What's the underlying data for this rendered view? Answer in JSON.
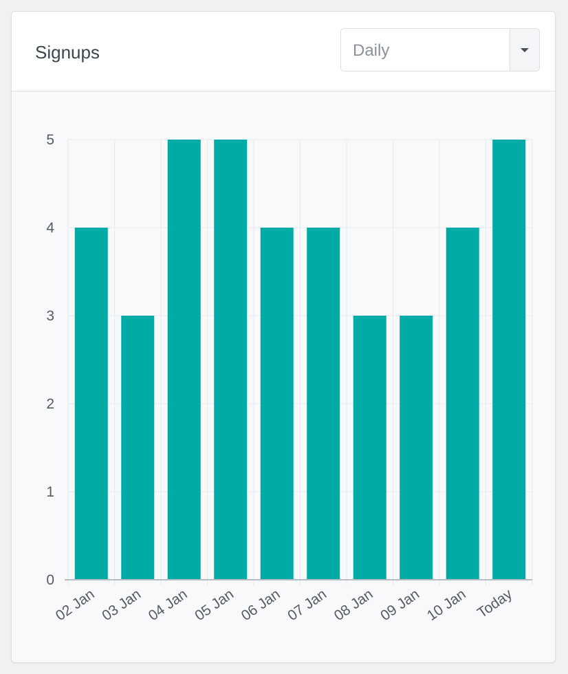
{
  "widget": {
    "title": "Signups",
    "period_select": {
      "value": "Daily"
    }
  },
  "colors": {
    "bar": "#00aba6",
    "grid": "#e6e9ed",
    "axis": "#b7bcc2"
  },
  "chart_data": {
    "type": "bar",
    "title": "",
    "xlabel": "",
    "ylabel": "",
    "categories": [
      "02 Jan",
      "03 Jan",
      "04 Jan",
      "05 Jan",
      "06 Jan",
      "07 Jan",
      "08 Jan",
      "09 Jan",
      "10 Jan",
      "Today"
    ],
    "values": [
      4,
      3,
      5,
      5,
      4,
      4,
      3,
      3,
      4,
      5
    ],
    "ylim": [
      0,
      5
    ],
    "yticks": [
      0,
      1,
      2,
      3,
      4,
      5
    ],
    "grid": true,
    "legend": "none"
  }
}
